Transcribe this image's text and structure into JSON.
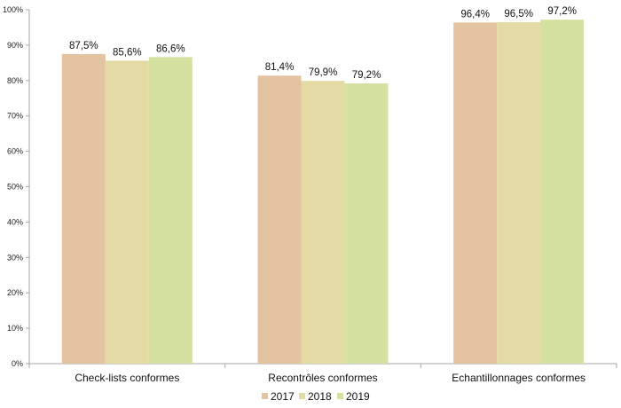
{
  "chart_data": {
    "type": "bar",
    "categories": [
      "Check-lists conformes",
      "Recontrôles conformes",
      "Echantillonnages conformes"
    ],
    "series": [
      {
        "name": "2017",
        "values": [
          87.5,
          81.4,
          96.4
        ],
        "labels": [
          "87,5%",
          "81,4%",
          "96,4%"
        ],
        "color": "#e3c3a0"
      },
      {
        "name": "2018",
        "values": [
          85.6,
          79.9,
          96.5
        ],
        "labels": [
          "85,6%",
          "79,9%",
          "96,5%"
        ],
        "color": "#e3dba3"
      },
      {
        "name": "2019",
        "values": [
          86.6,
          79.2,
          97.2
        ],
        "labels": [
          "86,6%",
          "79,2%",
          "97,2%"
        ],
        "color": "#d4e1a0"
      }
    ],
    "y_ticks": [
      "0%",
      "10%",
      "20%",
      "30%",
      "40%",
      "50%",
      "60%",
      "70%",
      "80%",
      "90%",
      "100%"
    ],
    "ylim": [
      0,
      100
    ],
    "grid": false,
    "legend_position": "bottom"
  }
}
